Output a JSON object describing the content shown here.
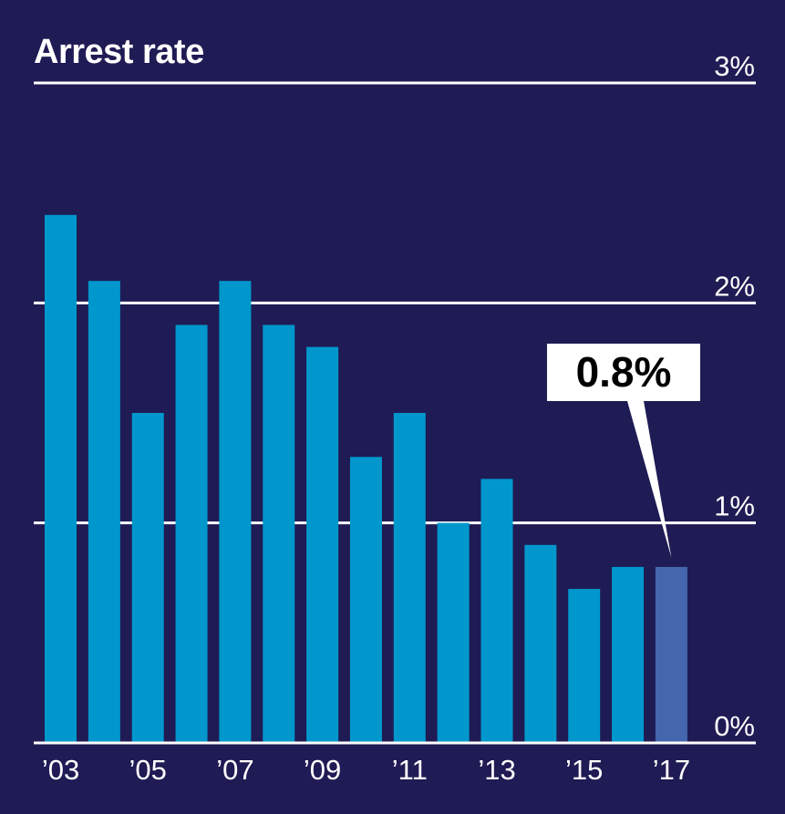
{
  "chart_data": {
    "type": "bar",
    "title": "Arrest rate",
    "xlabel": "",
    "ylabel": "",
    "ylim": [
      0,
      3
    ],
    "y_ticks": [
      {
        "value": 0,
        "label": "0%"
      },
      {
        "value": 1,
        "label": "1%"
      },
      {
        "value": 2,
        "label": "2%"
      },
      {
        "value": 3,
        "label": "3%"
      }
    ],
    "categories": [
      "2003",
      "2004",
      "2005",
      "2006",
      "2007",
      "2008",
      "2009",
      "2010",
      "2011",
      "2012",
      "2013",
      "2014",
      "2015",
      "2016",
      "2017"
    ],
    "x_tick_labels": [
      "’03",
      "",
      "’05",
      "",
      "’07",
      "",
      "’09",
      "",
      "’11",
      "",
      "’13",
      "",
      "’15",
      "",
      "’17"
    ],
    "values": [
      2.4,
      2.1,
      1.5,
      1.9,
      2.1,
      1.9,
      1.8,
      1.3,
      1.5,
      1.0,
      1.2,
      0.9,
      0.7,
      0.8,
      0.8
    ],
    "highlight_index": 14,
    "annotation": {
      "text": "0.8%",
      "target_index": 14
    },
    "grid": true,
    "colors": {
      "background": "#1f1b54",
      "bar": "#0097cc",
      "highlight_bar": "#4466ad",
      "gridline": "#ffffff",
      "text": "#ffffff",
      "callout_bg": "#ffffff",
      "callout_text": "#000000"
    }
  }
}
